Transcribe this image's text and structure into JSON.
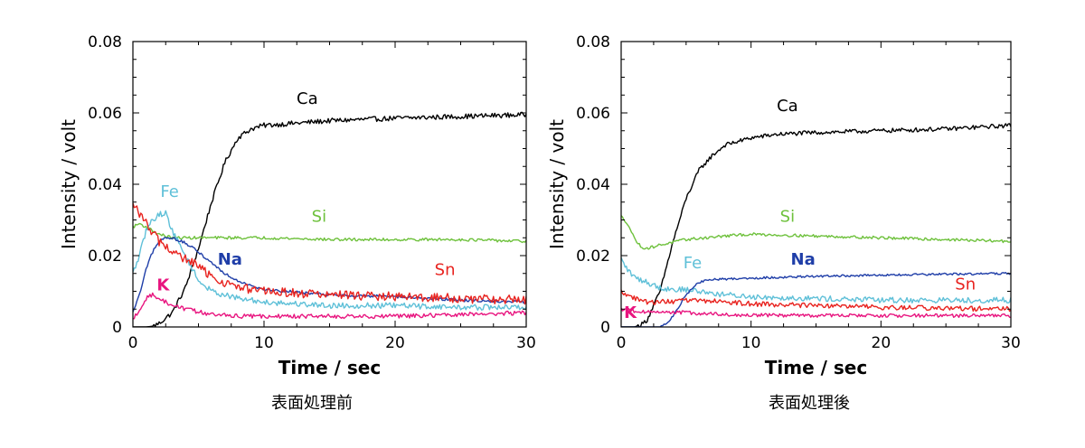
{
  "chart_data": [
    {
      "type": "line",
      "caption": "表面処理前",
      "xlabel": "Time / sec",
      "ylabel": "Intensity / volt",
      "xlim": [
        0,
        30
      ],
      "ylim": [
        0,
        0.08
      ],
      "x_ticks": [
        0,
        10,
        20,
        30
      ],
      "y_ticks": [
        0,
        0.02,
        0.04,
        0.06,
        0.08
      ],
      "x_tick_labels": [
        "0",
        "10",
        "20",
        "30"
      ],
      "y_tick_labels": [
        "0",
        "0.02",
        "0.04",
        "0.06",
        "0.08"
      ],
      "grid": false,
      "series": [
        {
          "name": "Ca",
          "color": "#000000",
          "noise": 0.0007,
          "x": [
            0,
            1,
            1.5,
            2,
            3,
            4,
            5,
            6,
            7,
            8,
            9,
            10,
            12,
            15,
            20,
            25,
            30
          ],
          "y": [
            0,
            0,
            0.0002,
            0.001,
            0.004,
            0.011,
            0.022,
            0.035,
            0.046,
            0.053,
            0.0555,
            0.0565,
            0.057,
            0.0578,
            0.0585,
            0.059,
            0.0595
          ]
        },
        {
          "name": "Si",
          "color": "#6ec13c",
          "noise": 0.0004,
          "x": [
            0,
            0.5,
            1,
            2,
            3,
            5,
            10,
            15,
            20,
            25,
            30
          ],
          "y": [
            0.028,
            0.029,
            0.028,
            0.026,
            0.025,
            0.025,
            0.025,
            0.0245,
            0.0245,
            0.0245,
            0.024
          ]
        },
        {
          "name": "Fe",
          "color": "#5fc0d8",
          "noise": 0.0008,
          "x": [
            0,
            0.5,
            1,
            1.5,
            2,
            2.5,
            3,
            4,
            5,
            6,
            8,
            10,
            15,
            20,
            25,
            30
          ],
          "y": [
            0.015,
            0.02,
            0.027,
            0.03,
            0.0315,
            0.032,
            0.027,
            0.02,
            0.013,
            0.01,
            0.008,
            0.007,
            0.006,
            0.006,
            0.0055,
            0.0055
          ]
        },
        {
          "name": "Na",
          "color": "#1f3ea8",
          "noise": 0.0004,
          "x": [
            0,
            0.5,
            1,
            1.5,
            2,
            2.5,
            3,
            4,
            5,
            6,
            7,
            8,
            10,
            15,
            20,
            25,
            30
          ],
          "y": [
            0.004,
            0.009,
            0.016,
            0.021,
            0.024,
            0.025,
            0.025,
            0.0235,
            0.021,
            0.018,
            0.015,
            0.013,
            0.0105,
            0.009,
            0.0085,
            0.0075,
            0.007
          ]
        },
        {
          "name": "Sn",
          "color": "#e8231f",
          "noise": 0.0013,
          "x": [
            0,
            0.5,
            1,
            2,
            3,
            4,
            5,
            6,
            8,
            10,
            15,
            20,
            25,
            30
          ],
          "y": [
            0.034,
            0.032,
            0.029,
            0.024,
            0.021,
            0.019,
            0.017,
            0.014,
            0.011,
            0.01,
            0.009,
            0.0085,
            0.008,
            0.0075
          ]
        },
        {
          "name": "K",
          "color": "#e8157f",
          "noise": 0.0006,
          "x": [
            0,
            0.5,
            1,
            1.5,
            2,
            3,
            4,
            6,
            8,
            10,
            15,
            20,
            25,
            30
          ],
          "y": [
            0.002,
            0.005,
            0.008,
            0.009,
            0.008,
            0.006,
            0.005,
            0.0035,
            0.003,
            0.003,
            0.003,
            0.003,
            0.0035,
            0.004
          ]
        }
      ],
      "annotations": [
        {
          "text": "Ca",
          "x": 13.3,
          "y": 0.0625,
          "color": "#000000",
          "bold": false
        },
        {
          "text": "Fe",
          "x": 2.8,
          "y": 0.0365,
          "color": "#5fc0d8",
          "bold": false
        },
        {
          "text": "Si",
          "x": 14.2,
          "y": 0.0295,
          "color": "#6ec13c",
          "bold": false
        },
        {
          "text": "Na",
          "x": 7.4,
          "y": 0.0175,
          "color": "#1f3ea8",
          "bold": true
        },
        {
          "text": "Sn",
          "x": 23.8,
          "y": 0.0145,
          "color": "#e8231f",
          "bold": false
        },
        {
          "text": "K",
          "x": 2.3,
          "y": 0.0103,
          "color": "#e8157f",
          "bold": true
        }
      ]
    },
    {
      "type": "line",
      "caption": "表面処理後",
      "xlabel": "Time / sec",
      "ylabel": "Intensity / volt",
      "xlim": [
        0,
        30
      ],
      "ylim": [
        0,
        0.08
      ],
      "x_ticks": [
        0,
        10,
        20,
        30
      ],
      "y_ticks": [
        0,
        0.02,
        0.04,
        0.06,
        0.08
      ],
      "x_tick_labels": [
        "0",
        "10",
        "20",
        "30"
      ],
      "y_tick_labels": [
        "0",
        "0.02",
        "0.04",
        "0.06",
        "0.08"
      ],
      "grid": false,
      "series": [
        {
          "name": "Ca",
          "color": "#000000",
          "noise": 0.0006,
          "x": [
            0,
            1,
            1.5,
            2,
            3,
            4,
            5,
            6,
            7,
            8,
            10,
            12,
            15,
            20,
            25,
            30
          ],
          "y": [
            0,
            0,
            0.0005,
            0.002,
            0.01,
            0.024,
            0.036,
            0.044,
            0.048,
            0.051,
            0.053,
            0.054,
            0.0545,
            0.055,
            0.0555,
            0.0565
          ]
        },
        {
          "name": "Si",
          "color": "#6ec13c",
          "noise": 0.0004,
          "x": [
            0,
            0.5,
            1,
            1.5,
            2,
            3,
            5,
            8,
            10,
            15,
            20,
            25,
            30
          ],
          "y": [
            0.031,
            0.029,
            0.025,
            0.0225,
            0.022,
            0.023,
            0.0245,
            0.0255,
            0.026,
            0.0255,
            0.025,
            0.0245,
            0.024
          ]
        },
        {
          "name": "Fe",
          "color": "#5fc0d8",
          "noise": 0.0008,
          "x": [
            0,
            0.5,
            1,
            2,
            3,
            4,
            5,
            6,
            8,
            10,
            15,
            20,
            25,
            30
          ],
          "y": [
            0.019,
            0.016,
            0.014,
            0.0125,
            0.011,
            0.0105,
            0.0105,
            0.01,
            0.009,
            0.0085,
            0.008,
            0.0075,
            0.0075,
            0.0075
          ]
        },
        {
          "name": "Na",
          "color": "#1f3ea8",
          "noise": 0.0003,
          "x": [
            0,
            3,
            3.5,
            4,
            4.5,
            5,
            5.5,
            6,
            6.5,
            7,
            10,
            15,
            20,
            25,
            30
          ],
          "y": [
            0,
            0,
            0.001,
            0.003,
            0.006,
            0.009,
            0.011,
            0.0125,
            0.013,
            0.0133,
            0.0137,
            0.0142,
            0.0145,
            0.0148,
            0.015
          ]
        },
        {
          "name": "Sn",
          "color": "#e8231f",
          "noise": 0.0007,
          "x": [
            0,
            0.5,
            1,
            2,
            3,
            4,
            6,
            8,
            10,
            15,
            20,
            25,
            30
          ],
          "y": [
            0.01,
            0.009,
            0.008,
            0.007,
            0.007,
            0.0072,
            0.0075,
            0.007,
            0.0065,
            0.006,
            0.0055,
            0.0052,
            0.005
          ]
        },
        {
          "name": "K",
          "color": "#e8157f",
          "noise": 0.0005,
          "x": [
            0,
            0.5,
            1,
            2,
            3,
            4,
            5,
            6,
            8,
            10,
            15,
            20,
            25,
            30
          ],
          "y": [
            0.005,
            0.0048,
            0.0045,
            0.0042,
            0.004,
            0.0042,
            0.004,
            0.0038,
            0.0035,
            0.0033,
            0.0032,
            0.0032,
            0.0032,
            0.0032
          ]
        }
      ],
      "annotations": [
        {
          "text": "Ca",
          "x": 12.8,
          "y": 0.0605,
          "color": "#000000",
          "bold": false
        },
        {
          "text": "Si",
          "x": 12.8,
          "y": 0.0295,
          "color": "#6ec13c",
          "bold": false
        },
        {
          "text": "Fe",
          "x": 5.5,
          "y": 0.0165,
          "color": "#5fc0d8",
          "bold": false
        },
        {
          "text": "Na",
          "x": 14.0,
          "y": 0.0175,
          "color": "#1f3ea8",
          "bold": true
        },
        {
          "text": "Sn",
          "x": 26.5,
          "y": 0.0105,
          "color": "#e8231f",
          "bold": false
        },
        {
          "text": "K",
          "x": 0.7,
          "y": 0.0025,
          "color": "#e8157f",
          "bold": true
        }
      ]
    }
  ]
}
